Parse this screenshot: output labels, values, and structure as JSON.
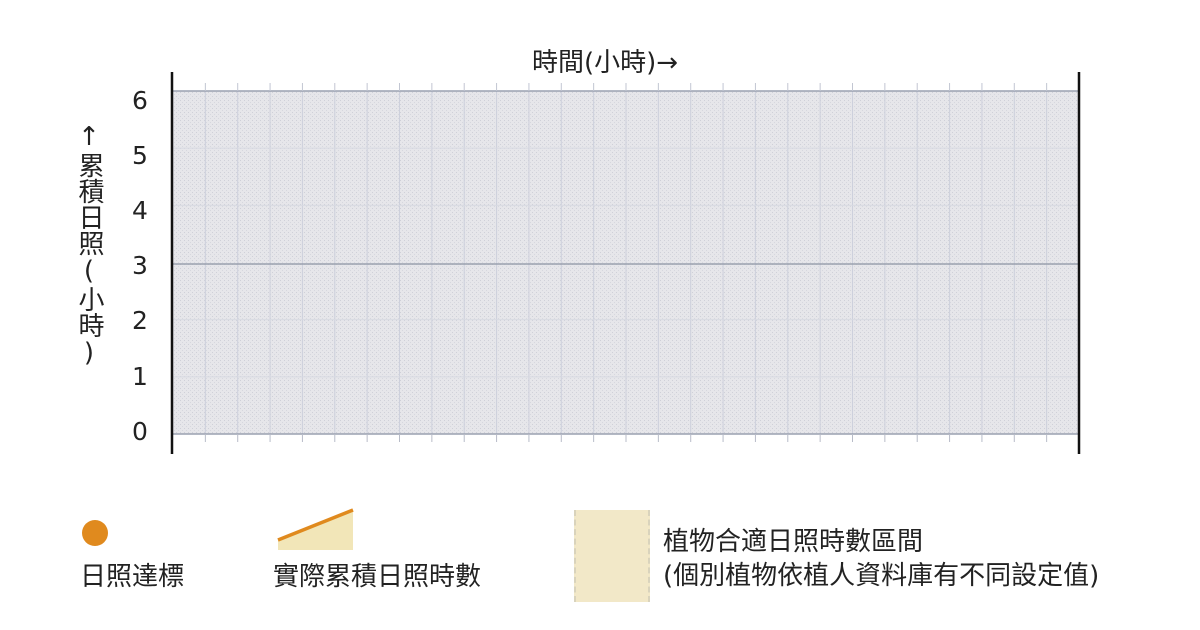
{
  "chart_data": {
    "type": "area",
    "xlabel": "時間(小時)→",
    "ylabel": "↑累積日照(小時)",
    "y_ticks": [
      "0",
      "1",
      "2",
      "3",
      "4",
      "5",
      "6"
    ],
    "ylim": [
      0,
      6
    ],
    "reference_line": 3,
    "grid": true,
    "series": [],
    "legend": [
      {
        "label": "日照達標",
        "marker": "dot",
        "color": "#e08a1e"
      },
      {
        "label": "實際累積日照時數",
        "marker": "area-line",
        "color": "#e08a1e",
        "fill": "#f2e6b8"
      },
      {
        "label": "植物合適日照時數區間",
        "sublabel": "(個別植物依植人資料庫有不同設定值)",
        "marker": "zone",
        "color": "#f2e8c8"
      }
    ]
  },
  "colors": {
    "axis": "#111111",
    "grid": "#c8ccd8",
    "zone_fill": "#e9e9ec",
    "zone_border": "#9aa0b0",
    "reference_line": "#9aa0ae",
    "accent": "#e08a1e"
  },
  "icons": {
    "goal_marker": "orange-dot-icon",
    "actual_marker": "orange-slope-icon",
    "zone_marker": "beige-zone-icon"
  }
}
